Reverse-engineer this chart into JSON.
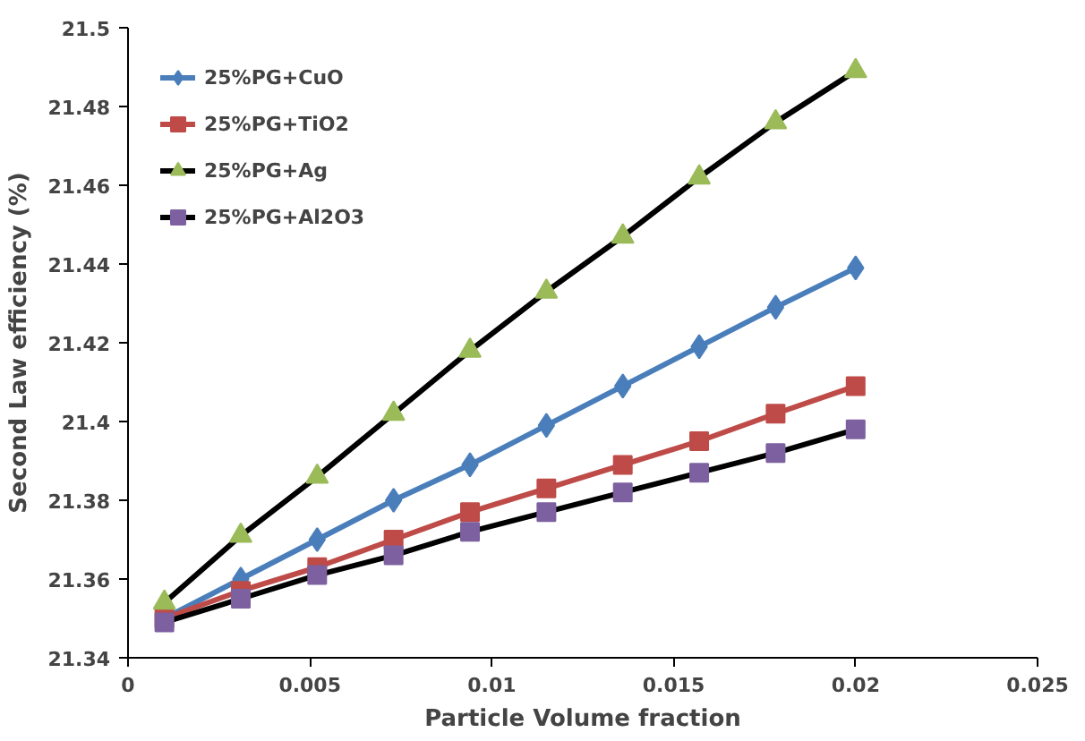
{
  "chart_data": {
    "type": "line",
    "xlabel": "Particle Volume fraction",
    "ylabel": "Second Law efficiency (%)",
    "x": [
      0.001,
      0.0031,
      0.0052,
      0.0073,
      0.0094,
      0.0115,
      0.0136,
      0.0157,
      0.0178,
      0.02
    ],
    "series": [
      {
        "name": "25%PG+CuO",
        "color": "#4a7ebb",
        "marker": "diamond",
        "values": [
          21.35,
          21.36,
          21.37,
          21.38,
          21.389,
          21.399,
          21.409,
          21.419,
          21.429,
          21.439
        ]
      },
      {
        "name": "25%PG+TiO2",
        "color": "#be4b48",
        "marker": "square",
        "values": [
          21.35,
          21.357,
          21.363,
          21.37,
          21.377,
          21.383,
          21.389,
          21.395,
          21.402,
          21.409
        ]
      },
      {
        "name": "25%PG+Ag",
        "color": "#000000",
        "colors": [
          "#9bbb59",
          "#9bbb59",
          "#9bbb59",
          "#9bbb59",
          "#9bbb59",
          "#9bbb59",
          "#9bbb59",
          "#9bbb59",
          "#9bbb59",
          "#9bbb59"
        ],
        "marker": "triangle",
        "values": [
          21.354,
          21.371,
          21.386,
          21.402,
          21.418,
          21.433,
          21.447,
          21.462,
          21.476,
          21.489
        ]
      },
      {
        "name": "25%PG+Al2O3",
        "color": "#000000",
        "colors": [
          "#7d60a0",
          "#7d60a0",
          "#7d60a0",
          "#7d60a0",
          "#7d60a0",
          "#7d60a0",
          "#7d60a0",
          "#7d60a0",
          "#7d60a0",
          "#7d60a0"
        ],
        "marker": "square",
        "values": [
          21.349,
          21.355,
          21.361,
          21.366,
          21.372,
          21.377,
          21.382,
          21.387,
          21.392,
          21.398
        ]
      }
    ],
    "xlim": [
      0,
      0.025
    ],
    "xticks": [
      0,
      0.005,
      0.01,
      0.015,
      0.02,
      0.025
    ],
    "ylim": [
      21.34,
      21.5
    ],
    "yticks": [
      21.34,
      21.36,
      21.38,
      21.4,
      21.42,
      21.44,
      21.46,
      21.48,
      21.5
    ],
    "grid": false,
    "legend": "top left",
    "line_style": "solid"
  }
}
